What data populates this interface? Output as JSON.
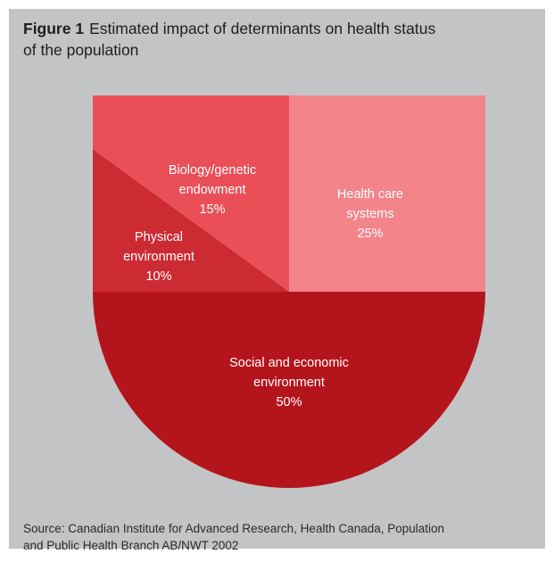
{
  "figure": {
    "number_label": "Figure 1",
    "title_line1": "Estimated impact of determinants on health status",
    "title_line2": "of the population"
  },
  "source": {
    "line1": "Source: Canadian Institute for Advanced Research, Health Canada, Population",
    "line2": "and Public Health Branch AB/NWT 2002"
  },
  "colors": {
    "background": "#c3c4c6",
    "health_care": "#f2848a",
    "biology": "#ea4f58",
    "physical": "#cc2b34",
    "social": "#b4141c"
  },
  "chart_data": {
    "type": "pie",
    "title": "Estimated impact of determinants on health status of the population",
    "start": "12 o'clock, clockwise",
    "slices": [
      {
        "label": [
          "Health care",
          "systems"
        ],
        "value_label": "25%",
        "value": 25,
        "color": "#f2848a"
      },
      {
        "label": [
          "Social and economic",
          "environment"
        ],
        "value_label": "50%",
        "value": 50,
        "color": "#b4141c"
      },
      {
        "label": [
          "Physical",
          "environment"
        ],
        "value_label": "10%",
        "value": 10,
        "color": "#cc2b34"
      },
      {
        "label": [
          "Biology/genetic",
          "endowment"
        ],
        "value_label": "15%",
        "value": 15,
        "color": "#ea4f58"
      }
    ]
  }
}
